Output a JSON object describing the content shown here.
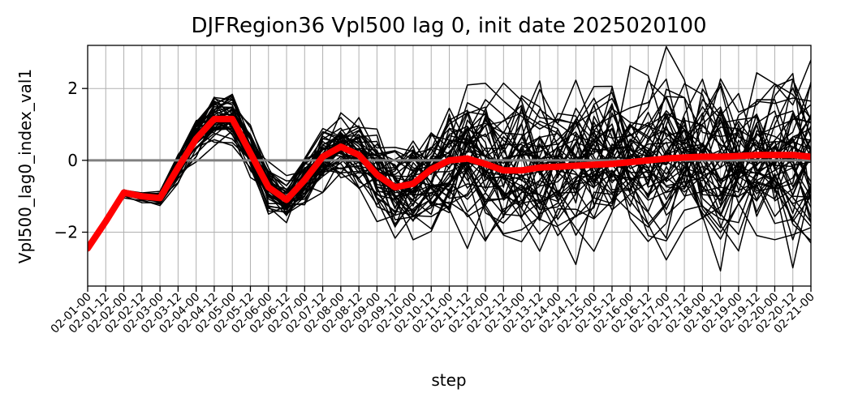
{
  "chart_data": {
    "type": "line",
    "title": "DJFRegion36 Vpl500 lag 0, init date 2025020100",
    "xlabel": "step",
    "ylabel": "Vpl500_lag0_index_val1",
    "ylim": [
      -3.5,
      3.2
    ],
    "yticks": [
      -2,
      0,
      2
    ],
    "grid": true,
    "x": [
      "02-01-00",
      "02-01-12",
      "02-02-00",
      "02-02-12",
      "02-03-00",
      "02-03-12",
      "02-04-00",
      "02-04-12",
      "02-05-00",
      "02-05-12",
      "02-06-00",
      "02-06-12",
      "02-07-00",
      "02-07-12",
      "02-08-00",
      "02-08-12",
      "02-09-00",
      "02-09-12",
      "02-10-00",
      "02-10-12",
      "02-11-00",
      "02-11-12",
      "02-12-00",
      "02-12-12",
      "02-13-00",
      "02-13-12",
      "02-14-00",
      "02-14-12",
      "02-15-00",
      "02-15-12",
      "02-16-00",
      "02-16-12",
      "02-17-00",
      "02-17-12",
      "02-18-00",
      "02-18-12",
      "02-19-00",
      "02-19-12",
      "02-20-00",
      "02-20-12",
      "02-21-00"
    ],
    "ensemble": {
      "color": "#000000",
      "member_count": 50,
      "base": [
        -2.45,
        -1.7,
        -0.9,
        -1.0,
        -1.05,
        -0.2,
        0.6,
        1.15,
        1.15,
        0.2,
        -0.75,
        -1.1,
        -0.55,
        0.1,
        0.38,
        0.15,
        -0.4,
        -0.75,
        -0.65,
        -0.25,
        0.0,
        0.05,
        -0.1,
        -0.28,
        -0.28,
        -0.2,
        -0.18,
        -0.15,
        -0.12,
        -0.1,
        -0.05,
        0.0,
        0.05,
        0.08,
        0.1,
        0.1,
        0.12,
        0.15,
        0.15,
        0.15,
        0.1
      ],
      "spread": [
        0.0,
        0.0,
        0.05,
        0.06,
        0.08,
        0.2,
        0.3,
        0.35,
        0.35,
        0.3,
        0.3,
        0.3,
        0.35,
        0.4,
        0.45,
        0.45,
        0.55,
        0.6,
        0.7,
        0.75,
        0.8,
        0.85,
        0.85,
        0.9,
        0.95,
        0.95,
        1.0,
        1.0,
        1.0,
        1.05,
        1.05,
        1.05,
        1.1,
        1.1,
        1.1,
        1.1,
        1.1,
        1.15,
        1.15,
        1.2,
        1.2
      ]
    },
    "series": [
      {
        "color": "#ff0000",
        "values": [
          -2.45,
          -1.7,
          -0.9,
          -1.0,
          -1.05,
          -0.2,
          0.6,
          1.15,
          1.15,
          0.2,
          -0.75,
          -1.1,
          -0.55,
          0.1,
          0.38,
          0.15,
          -0.4,
          -0.75,
          -0.65,
          -0.25,
          0.0,
          0.05,
          -0.1,
          -0.28,
          -0.28,
          -0.2,
          -0.18,
          -0.15,
          -0.12,
          -0.1,
          -0.05,
          0.0,
          0.05,
          0.08,
          0.1,
          0.1,
          0.12,
          0.15,
          0.15,
          0.15,
          0.1
        ]
      }
    ],
    "reference_line": {
      "y": 0,
      "color": "#808080"
    }
  }
}
